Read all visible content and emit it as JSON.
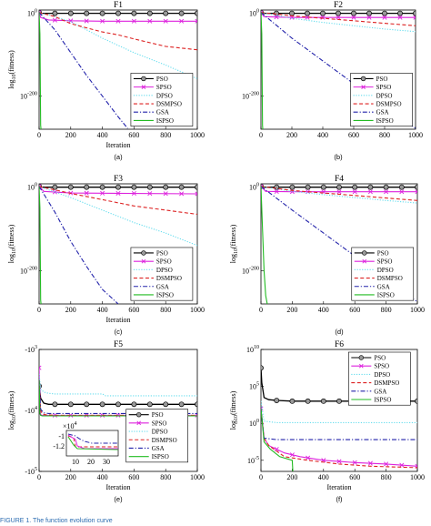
{
  "caption": "FIGURE 1. The function evolution curve",
  "colors": {
    "PSO": "#000000",
    "SPSO": "#dd22dd",
    "DPSO": "#66ddee",
    "DSMPSO": "#dd2222",
    "GSA": "#2222aa",
    "ISPSO": "#22bb22"
  },
  "chart_data": [
    {
      "id": "F1",
      "type": "line",
      "title": "F1",
      "sublabel": "(a)",
      "xlabel": "Iteration",
      "ylabel": "log10(fitness)",
      "yscale": "log",
      "xlim": [
        0,
        1000
      ],
      "xticks": [
        "0",
        "200",
        "400",
        "600",
        "800",
        "1000"
      ],
      "ylim_exp": [
        -280,
        8
      ],
      "yticks": [
        {
          "exp": 0,
          "label": "10^0"
        },
        {
          "exp": -200,
          "label": "10^-200"
        }
      ],
      "legend": "right",
      "series": [
        {
          "name": "PSO",
          "style": "solid-circle",
          "x": [
            0,
            10,
            1000
          ],
          "y": [
            2,
            0,
            0
          ]
        },
        {
          "name": "SPSO",
          "style": "solid-x",
          "x": [
            0,
            10,
            60,
            200,
            400,
            600,
            1000
          ],
          "y": [
            2,
            -10,
            -16,
            -18,
            -19,
            -19,
            -19
          ]
        },
        {
          "name": "DPSO",
          "style": "dotted",
          "x": [
            0,
            100,
            200,
            400,
            600,
            800,
            1000
          ],
          "y": [
            2,
            -8,
            -20,
            -60,
            -95,
            -125,
            -158
          ]
        },
        {
          "name": "DSMPSO",
          "style": "dashed",
          "x": [
            0,
            100,
            200,
            300,
            400,
            500,
            600,
            800,
            1000
          ],
          "y": [
            2,
            -8,
            -25,
            -35,
            -45,
            -52,
            -62,
            -80,
            -88
          ]
        },
        {
          "name": "GSA",
          "style": "dashdot",
          "x": [
            0,
            100,
            200,
            300,
            400,
            500,
            560
          ],
          "y": [
            2,
            -40,
            -95,
            -150,
            -200,
            -250,
            -278
          ]
        },
        {
          "name": "ISPSO",
          "style": "solid",
          "x": [
            0,
            5,
            10,
            12
          ],
          "y": [
            2,
            -50,
            -270,
            -280
          ]
        }
      ]
    },
    {
      "id": "F2",
      "type": "line",
      "title": "F2",
      "sublabel": "(b)",
      "xlabel": "",
      "ylabel": "",
      "yscale": "log",
      "xlim": [
        0,
        1000
      ],
      "xticks": [
        "0",
        "200",
        "400",
        "600",
        "800",
        "1000"
      ],
      "ylim_exp": [
        -280,
        8
      ],
      "yticks": [
        {
          "exp": 0,
          "label": "10^0"
        },
        {
          "exp": -200,
          "label": "10^-200"
        }
      ],
      "legend": "right",
      "series": [
        {
          "name": "PSO",
          "style": "solid-circle",
          "x": [
            0,
            10,
            1000
          ],
          "y": [
            2,
            0,
            0
          ]
        },
        {
          "name": "SPSO",
          "style": "solid-x",
          "x": [
            0,
            20,
            200,
            1000
          ],
          "y": [
            2,
            -8,
            -10,
            -10
          ]
        },
        {
          "name": "DPSO",
          "style": "dotted",
          "x": [
            0,
            200,
            400,
            600,
            800,
            1000
          ],
          "y": [
            2,
            -12,
            -22,
            -30,
            -38,
            -44
          ]
        },
        {
          "name": "DSMPSO",
          "style": "dashed",
          "x": [
            0,
            200,
            400,
            600,
            800,
            1000
          ],
          "y": [
            2,
            -6,
            -12,
            -18,
            -24,
            -30
          ]
        },
        {
          "name": "GSA",
          "style": "dashdot",
          "x": [
            0,
            200,
            400,
            600,
            800,
            1000
          ],
          "y": [
            2,
            -60,
            -115,
            -170,
            -225,
            -278
          ]
        },
        {
          "name": "ISPSO",
          "style": "solid",
          "x": [
            0,
            5,
            10,
            12
          ],
          "y": [
            2,
            -50,
            -270,
            -280
          ]
        }
      ]
    },
    {
      "id": "F3",
      "type": "line",
      "title": "F3",
      "sublabel": "(c)",
      "xlabel": "Iteration",
      "ylabel": "log10(fitness)",
      "yscale": "log",
      "xlim": [
        0,
        1000
      ],
      "xticks": [
        "0",
        "200",
        "400",
        "600",
        "800",
        "1000"
      ],
      "ylim_exp": [
        -280,
        8
      ],
      "yticks": [
        {
          "exp": 0,
          "label": "10^0"
        },
        {
          "exp": -200,
          "label": "10^-200"
        }
      ],
      "legend": "right",
      "series": [
        {
          "name": "PSO",
          "style": "solid-circle",
          "x": [
            0,
            10,
            1000
          ],
          "y": [
            2,
            0,
            0
          ]
        },
        {
          "name": "SPSO",
          "style": "solid-x",
          "x": [
            0,
            30,
            200,
            1000
          ],
          "y": [
            2,
            -10,
            -14,
            -16
          ]
        },
        {
          "name": "DPSO",
          "style": "dotted",
          "x": [
            0,
            200,
            400,
            600,
            800,
            1000
          ],
          "y": [
            2,
            -25,
            -55,
            -85,
            -110,
            -140
          ]
        },
        {
          "name": "DSMPSO",
          "style": "dashed",
          "x": [
            0,
            200,
            400,
            600,
            800,
            1000
          ],
          "y": [
            2,
            -15,
            -30,
            -45,
            -55,
            -65
          ]
        },
        {
          "name": "GSA",
          "style": "dashdot",
          "x": [
            0,
            100,
            200,
            300,
            400,
            500
          ],
          "y": [
            2,
            -60,
            -130,
            -190,
            -245,
            -280
          ]
        },
        {
          "name": "ISPSO",
          "style": "solid",
          "x": [
            0,
            5,
            10,
            12
          ],
          "y": [
            2,
            -50,
            -270,
            -280
          ]
        }
      ]
    },
    {
      "id": "F4",
      "type": "line",
      "title": "F4",
      "sublabel": "(d)",
      "xlabel": "",
      "ylabel": "log10(fitness)",
      "yscale": "log",
      "xlim": [
        0,
        1000
      ],
      "xticks": [
        "0",
        "200",
        "400",
        "600",
        "800",
        "1000"
      ],
      "ylim_exp": [
        -280,
        8
      ],
      "yticks": [
        {
          "exp": 0,
          "label": "10^0"
        },
        {
          "exp": -200,
          "label": "10^-200"
        }
      ],
      "legend": "right",
      "series": [
        {
          "name": "PSO",
          "style": "solid-circle",
          "x": [
            0,
            10,
            1000
          ],
          "y": [
            2,
            0,
            0
          ]
        },
        {
          "name": "SPSO",
          "style": "solid-x",
          "x": [
            0,
            30,
            200,
            1000
          ],
          "y": [
            2,
            -10,
            -11,
            -11
          ]
        },
        {
          "name": "DPSO",
          "style": "dotted",
          "x": [
            0,
            200,
            400,
            600,
            800,
            1000
          ],
          "y": [
            2,
            -10,
            -18,
            -25,
            -32,
            -38
          ]
        },
        {
          "name": "DSMPSO",
          "style": "dashed",
          "x": [
            0,
            200,
            400,
            600,
            800,
            1000
          ],
          "y": [
            2,
            -8,
            -14,
            -20,
            -26,
            -32
          ]
        },
        {
          "name": "GSA",
          "style": "dashdot",
          "x": [
            0,
            200,
            400,
            600,
            800,
            1000
          ],
          "y": [
            2,
            -55,
            -110,
            -165,
            -220,
            -275
          ]
        },
        {
          "name": "ISPSO",
          "style": "solid",
          "x": [
            0,
            10,
            20,
            30,
            40
          ],
          "y": [
            2,
            -100,
            -200,
            -260,
            -280
          ]
        }
      ]
    },
    {
      "id": "F5",
      "type": "line",
      "title": "F5",
      "sublabel": "(e)",
      "xlabel": "Iteration",
      "ylabel": "log10(fitness)",
      "yscale": "neglog",
      "xlim": [
        0,
        1000
      ],
      "xticks": [
        "0",
        "200",
        "400",
        "600",
        "800",
        "1000"
      ],
      "ylim_exp": [
        3,
        5
      ],
      "yticks": [
        {
          "exp": 3,
          "label": "-10^3"
        },
        {
          "exp": 4,
          "label": "-10^4"
        },
        {
          "exp": 5,
          "label": "-10^5"
        }
      ],
      "legend": "bottom-right",
      "series": [
        {
          "name": "PSO",
          "style": "solid-circle",
          "x": [
            0,
            10,
            30,
            60,
            100,
            200,
            1000
          ],
          "y": [
            3.6,
            3.8,
            3.88,
            3.9,
            3.9,
            3.9,
            3.9
          ]
        },
        {
          "name": "SPSO",
          "style": "solid-x",
          "x": [
            0,
            8,
            15,
            30,
            60,
            100,
            1000
          ],
          "y": [
            3.3,
            4.05,
            4.08,
            4.08,
            4.08,
            4.08,
            4.08
          ]
        },
        {
          "name": "DPSO",
          "style": "dotted",
          "x": [
            0,
            10,
            30,
            60,
            100,
            400,
            420,
            1000
          ],
          "y": [
            3.4,
            3.65,
            3.7,
            3.72,
            3.73,
            3.73,
            3.76,
            3.76
          ]
        },
        {
          "name": "DSMPSO",
          "style": "dashed",
          "x": [
            0,
            10,
            20,
            40,
            100,
            1000
          ],
          "y": [
            3.5,
            4.0,
            4.06,
            4.07,
            4.08,
            4.08
          ]
        },
        {
          "name": "GSA",
          "style": "dashdot",
          "x": [
            0,
            10,
            30,
            60,
            100,
            1000
          ],
          "y": [
            3.5,
            3.98,
            4.04,
            4.05,
            4.05,
            4.05
          ]
        },
        {
          "name": "ISPSO",
          "style": "solid",
          "x": [
            0,
            5,
            10,
            20,
            40,
            1000
          ],
          "y": [
            3.5,
            4.05,
            4.08,
            4.09,
            4.09,
            4.09
          ]
        }
      ],
      "inset": {
        "exp_label": "x 10^4",
        "yticks": [
          "-1",
          "-1.2"
        ],
        "xticks": [
          "10",
          "20",
          "30"
        ]
      }
    },
    {
      "id": "F6",
      "type": "line",
      "title": "F6",
      "sublabel": "(f)",
      "xlabel": "Iteration",
      "ylabel": "log10(fitness)",
      "yscale": "log",
      "xlim": [
        0,
        1000
      ],
      "xticks": [
        "0",
        "200",
        "400",
        "600",
        "800",
        "1000"
      ],
      "ylim_exp": [
        -6.5,
        10
      ],
      "yticks": [
        {
          "exp": 10,
          "label": "10^10"
        },
        {
          "exp": 5,
          "label": "10^5"
        },
        {
          "exp": 0,
          "label": "10^0"
        },
        {
          "exp": -5,
          "label": "10^-5"
        }
      ],
      "legend": "top-right",
      "series": [
        {
          "name": "PSO",
          "style": "solid-circle",
          "x": [
            0,
            5,
            20,
            50,
            100,
            200,
            1000
          ],
          "y": [
            7.5,
            5.5,
            3.5,
            3.2,
            3.1,
            3.0,
            3.0
          ]
        },
        {
          "name": "SPSO",
          "style": "solid-x",
          "x": [
            0,
            20,
            50,
            150,
            250,
            400,
            600,
            800,
            1000
          ],
          "y": [
            2,
            -2,
            -3,
            -4,
            -4.5,
            -5,
            -5.3,
            -5.5,
            -5.8
          ]
        },
        {
          "name": "DPSO",
          "style": "dotted",
          "x": [
            0,
            20,
            100,
            1000
          ],
          "y": [
            3,
            0.3,
            0.1,
            0.1
          ]
        },
        {
          "name": "DSMPSO",
          "style": "dashed",
          "x": [
            0,
            20,
            50,
            150,
            300,
            500,
            700,
            1000
          ],
          "y": [
            2,
            -2,
            -3,
            -4.5,
            -5,
            -5.5,
            -5.8,
            -6
          ]
        },
        {
          "name": "GSA",
          "style": "dashdot",
          "x": [
            0,
            20,
            100,
            1000
          ],
          "y": [
            2,
            -2,
            -2.2,
            -2.2
          ]
        },
        {
          "name": "ISPSO",
          "style": "solid",
          "x": [
            0,
            20,
            60,
            120,
            200,
            205
          ],
          "y": [
            2,
            -2.5,
            -3.5,
            -4.5,
            -5,
            -7
          ]
        }
      ]
    }
  ]
}
